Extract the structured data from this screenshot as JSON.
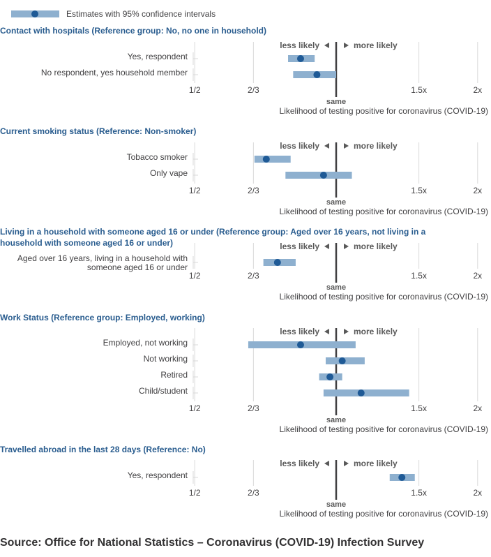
{
  "legend": {
    "label": "Estimates with 95% confidence intervals"
  },
  "colors": {
    "ci_bar": "#8eb0cf",
    "point": "#1f5a96",
    "panel_title": "#2a5d8f",
    "text": "#414042",
    "grid": "#d9d9d9",
    "ref_line": "#414042"
  },
  "axis": {
    "less_likely": "less likely",
    "more_likely": "more likely",
    "ticks": [
      {
        "value": 0.5,
        "label": "1/2"
      },
      {
        "value": 0.6667,
        "label": "2/3"
      },
      {
        "value": 1.5,
        "label": "1.5x"
      },
      {
        "value": 2,
        "label": "2x"
      }
    ],
    "same_value": 1,
    "same_label": "same",
    "xlabel": "Likelihood of testing positive for coronavirus (COVID-19)",
    "scale": "log"
  },
  "chart_data": {
    "type": "forest",
    "xscale": "log",
    "xlim": [
      0.5,
      2
    ],
    "panels": [
      {
        "title": "Contact with hospitals (Reference group: No, no one in household)",
        "rows": [
          {
            "label": "Yes, respondent",
            "estimate": 0.84,
            "lower": 0.79,
            "upper": 0.9
          },
          {
            "label": "No respondent, yes household member",
            "estimate": 0.91,
            "lower": 0.81,
            "upper": 1.0
          }
        ]
      },
      {
        "title": "Current smoking status (Reference: Non-smoker)",
        "rows": [
          {
            "label": "Tobacco smoker",
            "estimate": 0.71,
            "lower": 0.67,
            "upper": 0.8
          },
          {
            "label": "Only vape",
            "estimate": 0.94,
            "lower": 0.78,
            "upper": 1.08
          }
        ]
      },
      {
        "title": "Living in a household with someone aged 16 or under (Reference group: Aged over 16 years, not living in a household with someone aged 16 or under)",
        "rows": [
          {
            "label": "Aged over 16 years, living in a household with someone aged 16 or under",
            "estimate": 0.75,
            "lower": 0.7,
            "upper": 0.82
          }
        ]
      },
      {
        "title": "Work Status (Reference group: Employed, working)",
        "rows": [
          {
            "label": "Employed, not working",
            "estimate": 0.84,
            "lower": 0.65,
            "upper": 1.1
          },
          {
            "label": "Not working",
            "estimate": 1.03,
            "lower": 0.95,
            "upper": 1.15
          },
          {
            "label": "Retired",
            "estimate": 0.97,
            "lower": 0.92,
            "upper": 1.03
          },
          {
            "label": "Child/student",
            "estimate": 1.13,
            "lower": 0.94,
            "upper": 1.43
          }
        ]
      },
      {
        "title": "Travelled abroad in the last 28 days (Reference: No)",
        "rows": [
          {
            "label": "Yes, respondent",
            "estimate": 1.38,
            "lower": 1.3,
            "upper": 1.47
          }
        ]
      }
    ]
  },
  "source": "Source: Office for National Statistics – Coronavirus (COVID-19) Infection Survey"
}
